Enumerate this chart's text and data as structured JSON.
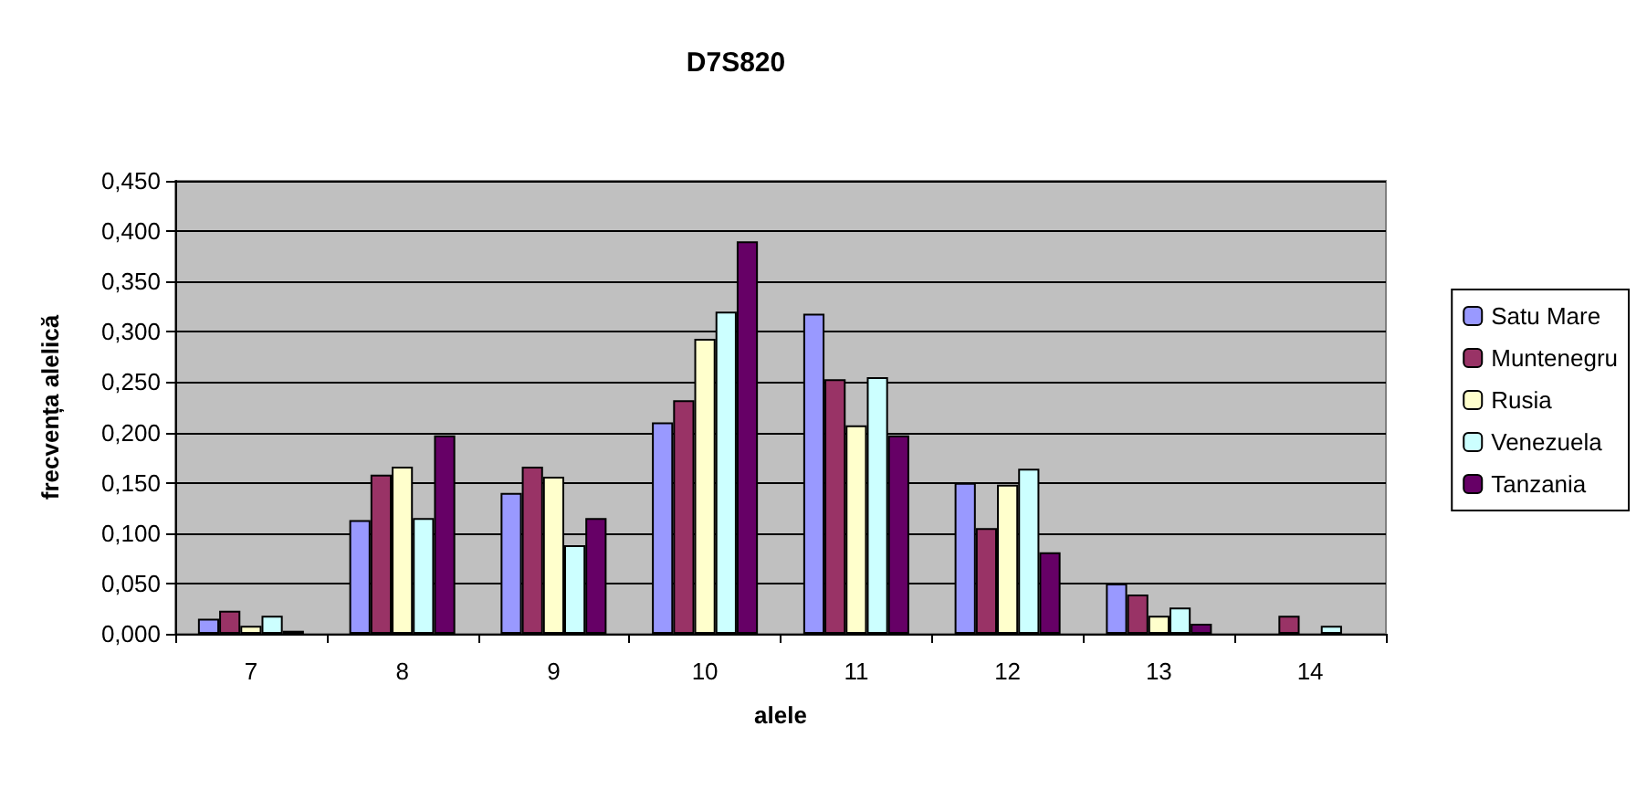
{
  "chart_data": {
    "type": "bar",
    "title": "D7S820",
    "xlabel": "alele",
    "ylabel": "frecvența alelică",
    "categories": [
      "7",
      "8",
      "9",
      "10",
      "11",
      "12",
      "13",
      "14"
    ],
    "series": [
      {
        "name": "Satu Mare",
        "color": "#9999ff",
        "values": [
          0.015,
          0.113,
          0.14,
          0.21,
          0.318,
          0.15,
          0.05,
          null
        ]
      },
      {
        "name": "Muntenegru",
        "color": "#993366",
        "values": [
          0.023,
          0.158,
          0.166,
          0.232,
          0.253,
          0.105,
          0.039,
          0.018
        ]
      },
      {
        "name": "Rusia",
        "color": "#ffffcc",
        "values": [
          0.008,
          0.166,
          0.156,
          0.293,
          0.207,
          0.148,
          0.018,
          null
        ]
      },
      {
        "name": "Venezuela",
        "color": "#ccffff",
        "values": [
          0.018,
          0.115,
          0.088,
          0.32,
          0.255,
          0.164,
          0.026,
          0.008
        ]
      },
      {
        "name": "Tanzania",
        "color": "#660066",
        "values": [
          0.003,
          0.197,
          0.115,
          0.39,
          0.197,
          0.081,
          0.01,
          null
        ]
      }
    ],
    "ylim": [
      0,
      0.45
    ],
    "yticks": [
      {
        "value": 0,
        "label": "0,000"
      },
      {
        "value": 0.05,
        "label": "0,050"
      },
      {
        "value": 0.1,
        "label": "0,100"
      },
      {
        "value": 0.15,
        "label": "0,150"
      },
      {
        "value": 0.2,
        "label": "0,200"
      },
      {
        "value": 0.25,
        "label": "0,250"
      },
      {
        "value": 0.3,
        "label": "0,300"
      },
      {
        "value": 0.35,
        "label": "0,350"
      },
      {
        "value": 0.4,
        "label": "0,400"
      },
      {
        "value": 0.45,
        "label": "0,450"
      }
    ],
    "grid": "y",
    "legend": "right"
  }
}
